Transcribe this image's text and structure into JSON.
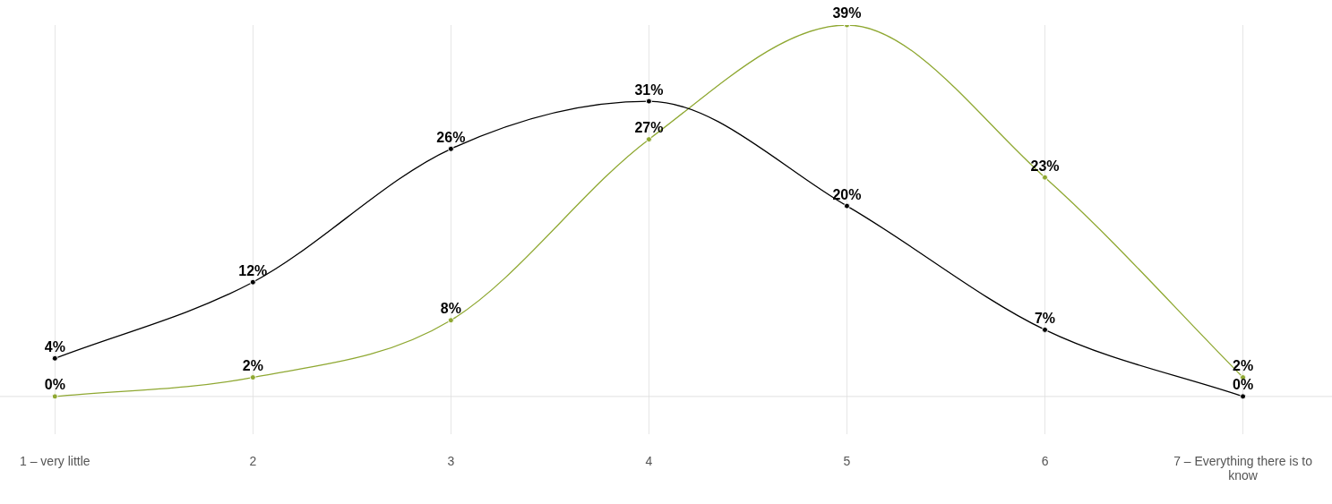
{
  "chart_data": {
    "type": "line",
    "categories": [
      "1 – very little",
      "2",
      "3",
      "4",
      "5",
      "6",
      "7 – Everything there is to know"
    ],
    "series": [
      {
        "color": "#000000",
        "values": [
          4,
          12,
          26,
          31,
          20,
          7,
          0
        ],
        "value_labels": [
          "4%",
          "12%",
          "26%",
          "31%",
          "20%",
          "7%",
          "0%"
        ]
      },
      {
        "color": "#8fa832",
        "values": [
          0,
          2,
          8,
          27,
          39,
          23,
          2
        ],
        "value_labels": [
          "0%",
          "2%",
          "8%",
          "27%",
          "39%",
          "23%",
          "2%"
        ]
      }
    ],
    "ylim": [
      -4,
      39
    ],
    "ref_lines": [
      {
        "axis": "y",
        "value": 0,
        "color": "#e0e0e0"
      }
    ],
    "tick_labels": "x",
    "grid": true,
    "legend": false,
    "marker": "circle",
    "line_style": "solid"
  }
}
